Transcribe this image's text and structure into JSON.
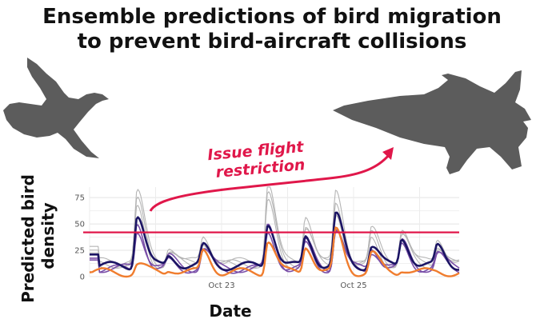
{
  "title_lines": [
    "Ensemble predictions of bird migration",
    "to prevent bird-aircraft collisions"
  ],
  "annotation_lines": [
    "Issue flight",
    "restriction"
  ],
  "icons": {
    "bird": "bird-silhouette-icon",
    "plane": "fighter-jet-silhouette-icon",
    "arrow": "curved-arrow-icon"
  },
  "colors": {
    "threshold": "#e0174a",
    "ensemble": "#b5b5b5",
    "mean": "#1b1464",
    "members": "#7a4fa8",
    "observed": "#f07d2e",
    "silhouette": "#5c5c5c"
  },
  "chart_data": {
    "type": "line",
    "xlabel": "Date",
    "ylabel": "Predicted bird density",
    "ylim": [
      0,
      85
    ],
    "yticks": [
      0,
      25,
      50,
      75
    ],
    "xlim": [
      0,
      5.6
    ],
    "xticks": [
      {
        "x": 2,
        "label": "Oct 23"
      },
      {
        "x": 4,
        "label": "Oct 25"
      }
    ],
    "threshold": 42,
    "grid": true,
    "peaks": [
      0.72,
      1.2,
      1.72,
      2.7,
      3.27,
      3.73,
      4.27,
      4.73,
      5.27
    ],
    "series": [
      {
        "role": "ensemble",
        "values": [
          82,
          30,
          37,
          92,
          60,
          79,
          45,
          48,
          36,
          50,
          35
        ]
      },
      {
        "role": "ensemble",
        "values": [
          72,
          25,
          33,
          80,
          50,
          70,
          40,
          42,
          31,
          46,
          30
        ]
      },
      {
        "role": "ensemble",
        "values": [
          65,
          22,
          30,
          70,
          45,
          62,
          36,
          38,
          28,
          42,
          27
        ]
      },
      {
        "role": "members",
        "values": [
          50,
          18,
          27,
          47,
          33,
          48,
          28,
          32,
          22,
          38,
          20
        ]
      },
      {
        "role": "members",
        "values": [
          45,
          15,
          24,
          42,
          30,
          44,
          25,
          30,
          20,
          36,
          18
        ]
      },
      {
        "role": "mean",
        "values": [
          60,
          20,
          28,
          52,
          38,
          58,
          30,
          37,
          28,
          42,
          25
        ]
      },
      {
        "role": "observed",
        "values": [
          12,
          8,
          24,
          36,
          30,
          43,
          22,
          8,
          5,
          52,
          10
        ]
      }
    ]
  }
}
